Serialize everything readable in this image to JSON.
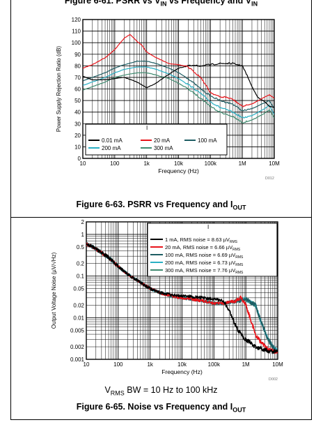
{
  "top_caption": {
    "main": "Figure 6-61. PSRR vs V",
    "sub1": "IN",
    "mid": " vs Frequency and V",
    "sub2": "IN"
  },
  "fig63_caption": {
    "main": "Figure 6-63. PSRR vs Frequency and I",
    "sub": "OUT"
  },
  "fig65_caption": {
    "main": "Figure 6-65. Noise vs Frequency and I",
    "sub": "OUT"
  },
  "fig65_note": {
    "v": "V",
    "sub": "RMS",
    "rest": " BW = 10 Hz to 100 kHz"
  },
  "colors": {
    "black": "#000000",
    "red": "#e8141a",
    "darkteal": "#1e5d63",
    "cyan": "#2ab0c4",
    "green": "#3f8a6f"
  },
  "chart_data": [
    {
      "type": "line",
      "id": "D012",
      "ylabel": "Power Supply Rejection Ratio (dB)",
      "xlabel": "Frequency (Hz)",
      "xscale": "log",
      "xlim": [
        10,
        10000000
      ],
      "ylim": [
        0,
        120
      ],
      "xticks": [
        "10",
        "100",
        "1k",
        "10k",
        "100k",
        "1M",
        "10M"
      ],
      "yticks": [
        "0",
        "10",
        "20",
        "30",
        "40",
        "50",
        "60",
        "70",
        "80",
        "90",
        "100",
        "110",
        "120"
      ],
      "legend_title": "I",
      "legend_title_sub": "OUT",
      "legend_position": "bottom-left",
      "grid": true,
      "series": [
        {
          "name": "0.01 mA",
          "color": "#000000",
          "x": [
            10,
            20,
            50,
            100,
            200,
            500,
            1000,
            2000,
            4000,
            10000,
            20000,
            50000,
            100000,
            200000,
            500000,
            1000000,
            1500000,
            2000000,
            3000000,
            5000000,
            7000000,
            10000000
          ],
          "y": [
            71,
            68,
            68,
            69,
            70,
            66,
            61,
            65,
            71,
            78,
            80,
            80,
            81,
            82,
            82,
            80,
            70,
            62,
            53,
            49,
            45,
            44
          ]
        },
        {
          "name": "20 mA",
          "color": "#e8141a",
          "x": [
            10,
            20,
            50,
            100,
            200,
            300,
            400,
            500,
            700,
            1000,
            2000,
            5000,
            10000,
            20000,
            50000,
            100000,
            200000,
            300000,
            500000,
            1000000,
            2000000,
            5000000,
            7000000,
            10000000
          ],
          "y": [
            78,
            81,
            87,
            94,
            104,
            107,
            104,
            101,
            98,
            92,
            87,
            82,
            81,
            79,
            70,
            57,
            53,
            53,
            51,
            45,
            47,
            53,
            55,
            52
          ]
        },
        {
          "name": "100 mA",
          "color": "#1e5d63",
          "x": [
            10,
            20,
            50,
            100,
            200,
            500,
            1000,
            2000,
            5000,
            10000,
            20000,
            50000,
            100000,
            200000,
            500000,
            1000000,
            2000000,
            5000000,
            7000000,
            10000000
          ],
          "y": [
            67,
            70,
            74,
            78,
            81,
            84,
            84,
            82,
            78,
            74,
            69,
            60,
            54,
            50,
            47,
            41,
            43,
            48,
            50,
            43
          ]
        },
        {
          "name": "200 mA",
          "color": "#2ab0c4",
          "x": [
            10,
            20,
            50,
            100,
            200,
            500,
            1000,
            2000,
            5000,
            10000,
            20000,
            50000,
            100000,
            200000,
            500000,
            1000000,
            2000000,
            5000000,
            7000000,
            10000000
          ],
          "y": [
            63,
            66,
            70,
            74,
            77,
            79,
            79,
            77,
            73,
            69,
            64,
            56,
            49,
            44,
            40,
            35,
            37,
            43,
            46,
            38
          ]
        },
        {
          "name": "300 mA",
          "color": "#3f8a6f",
          "x": [
            10,
            20,
            50,
            100,
            200,
            500,
            1000,
            2000,
            5000,
            10000,
            20000,
            50000,
            100000,
            200000,
            500000,
            1000000,
            2000000,
            5000000,
            7000000,
            10000000
          ],
          "y": [
            59,
            62,
            66,
            70,
            72,
            74,
            74,
            72,
            69,
            65,
            60,
            52,
            45,
            40,
            36,
            31,
            33,
            39,
            42,
            35
          ]
        }
      ]
    },
    {
      "type": "line",
      "id": "D002",
      "ylabel": "Output Voltage Noise (µV/√Hz)",
      "xlabel": "Frequency (Hz)",
      "xscale": "log",
      "yscale": "log",
      "xlim": [
        10,
        10000000
      ],
      "ylim": [
        0.001,
        2
      ],
      "xticks": [
        "10",
        "100",
        "1k",
        "10k",
        "100k",
        "1M",
        "10M"
      ],
      "yticks": [
        "0.001",
        "0.002",
        "0.005",
        "0.01",
        "0.02",
        "0.05",
        "0.1",
        "0.2",
        "0.5",
        "1",
        "2"
      ],
      "legend_title": "I",
      "legend_title_sub": "OUT",
      "legend_position": "top-right",
      "grid": true,
      "series": [
        {
          "name": "1 mA, RMS noise = 8.63 µV",
          "name_sub": "RMS",
          "color": "#000000",
          "x": [
            10,
            20,
            50,
            100,
            200,
            500,
            1000,
            2000,
            5000,
            10000,
            20000,
            50000,
            100000,
            200000,
            300000,
            500000,
            700000,
            1000000,
            2000000,
            5000000,
            10000000
          ],
          "y": [
            0.6,
            0.45,
            0.28,
            0.17,
            0.11,
            0.07,
            0.05,
            0.04,
            0.035,
            0.033,
            0.032,
            0.03,
            0.028,
            0.025,
            0.015,
            0.006,
            0.004,
            0.003,
            0.002,
            0.0016,
            0.0015
          ]
        },
        {
          "name": "20 mA, RMS noise = 6.66 µV",
          "name_sub": "RMS",
          "color": "#e8141a",
          "x": [
            10,
            20,
            50,
            100,
            200,
            500,
            1000,
            2000,
            5000,
            10000,
            20000,
            50000,
            100000,
            200000,
            500000,
            700000,
            1000000,
            1500000,
            2000000,
            3000000,
            5000000,
            10000000
          ],
          "y": [
            0.6,
            0.45,
            0.28,
            0.17,
            0.11,
            0.07,
            0.05,
            0.04,
            0.033,
            0.03,
            0.028,
            0.025,
            0.022,
            0.022,
            0.026,
            0.03,
            0.02,
            0.008,
            0.004,
            0.0025,
            0.0017,
            0.0015
          ]
        },
        {
          "name": "100 mA, RMS noise = 6.69 µV",
          "name_sub": "RMS",
          "color": "#1e5d63",
          "x": [
            10,
            20,
            50,
            100,
            200,
            500,
            1000,
            2000,
            5000,
            10000,
            20000,
            50000,
            100000,
            200000,
            500000,
            1000000,
            2000000,
            3000000,
            5000000,
            7000000,
            10000000
          ],
          "y": [
            0.6,
            0.45,
            0.28,
            0.17,
            0.11,
            0.07,
            0.05,
            0.04,
            0.033,
            0.03,
            0.028,
            0.025,
            0.022,
            0.022,
            0.025,
            0.028,
            0.02,
            0.008,
            0.003,
            0.002,
            0.0015
          ]
        },
        {
          "name": "200 mA, RMS noise = 6.73 µV",
          "name_sub": "RMS",
          "color": "#2ab0c4",
          "x": [
            10,
            20,
            50,
            100,
            200,
            500,
            1000,
            2000,
            5000,
            10000,
            20000,
            50000,
            100000,
            200000,
            500000,
            1000000,
            2000000,
            3000000,
            5000000,
            7000000,
            10000000
          ],
          "y": [
            0.6,
            0.45,
            0.28,
            0.17,
            0.11,
            0.07,
            0.05,
            0.04,
            0.033,
            0.03,
            0.028,
            0.025,
            0.022,
            0.022,
            0.025,
            0.028,
            0.02,
            0.008,
            0.003,
            0.002,
            0.0015
          ]
        },
        {
          "name": "300 mA, RMS noise = 7.76 µV",
          "name_sub": "RMS",
          "color": "#3f8a6f",
          "x": [
            10,
            20,
            50,
            100,
            200,
            500,
            1000,
            2000,
            5000,
            10000,
            20000,
            50000,
            100000,
            200000,
            500000,
            1000000,
            2000000,
            3000000,
            5000000,
            7000000,
            10000000
          ],
          "y": [
            0.6,
            0.45,
            0.28,
            0.17,
            0.11,
            0.07,
            0.05,
            0.04,
            0.033,
            0.03,
            0.028,
            0.025,
            0.022,
            0.022,
            0.025,
            0.028,
            0.02,
            0.008,
            0.003,
            0.002,
            0.0015
          ]
        }
      ]
    }
  ]
}
